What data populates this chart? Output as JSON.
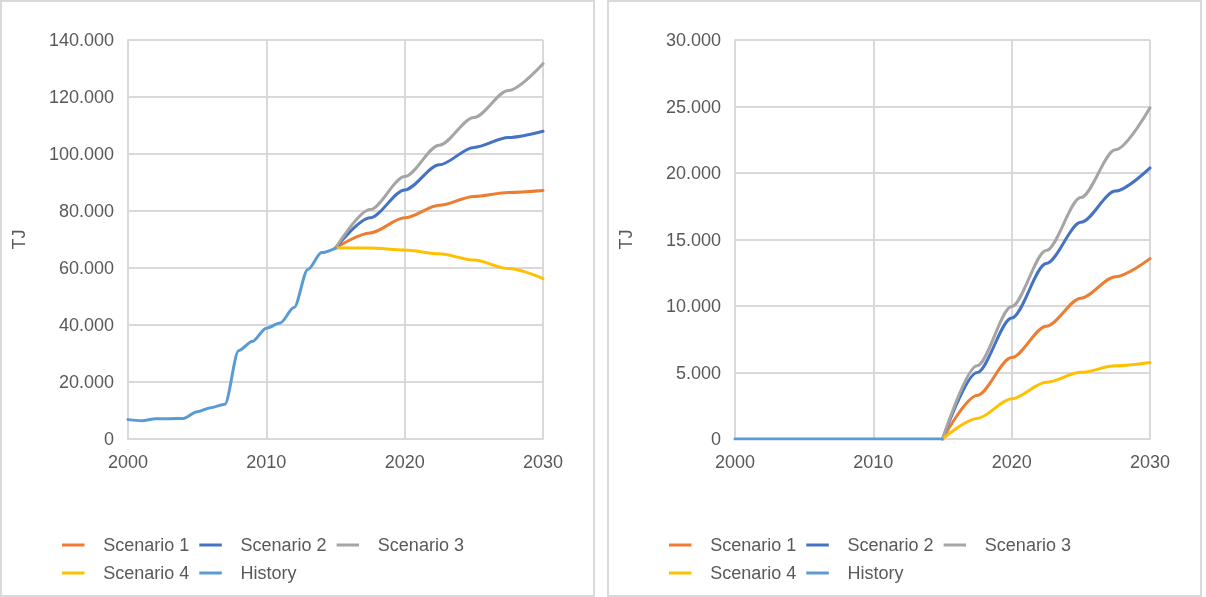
{
  "chart_data": [
    {
      "type": "line",
      "ylabel": "TJ",
      "xlim": [
        2000,
        2030
      ],
      "xticks": [
        2000,
        2010,
        2020,
        2030
      ],
      "ylim": [
        0,
        140000
      ],
      "yticks": [
        {
          "value": 0,
          "label": "0"
        },
        {
          "value": 20000,
          "label": "20.000"
        },
        {
          "value": 40000,
          "label": "40.000"
        },
        {
          "value": 60000,
          "label": "60.000"
        },
        {
          "value": 80000,
          "label": "80.000"
        },
        {
          "value": 100000,
          "label": "100.000"
        },
        {
          "value": 120000,
          "label": "120.000"
        },
        {
          "value": 140000,
          "label": "140.000"
        }
      ],
      "grid": true,
      "legend": "bottom",
      "marker": "none",
      "series": [
        {
          "name": "Scenario 1",
          "color": "#ed7d31",
          "x": [
            2015,
            2017.5,
            2020,
            2022.5,
            2025,
            2027.5,
            2030
          ],
          "values": [
            67000,
            72300,
            77600,
            82000,
            85100,
            86500,
            87200
          ]
        },
        {
          "name": "Scenario 2",
          "color": "#4472c4",
          "x": [
            2015,
            2017.5,
            2020,
            2022.5,
            2025,
            2027.5,
            2030
          ],
          "values": [
            67000,
            77600,
            87400,
            96200,
            102300,
            105800,
            108000
          ]
        },
        {
          "name": "Scenario 3",
          "color": "#a5a5a5",
          "x": [
            2015,
            2017.5,
            2020,
            2022.5,
            2025,
            2027.5,
            2030
          ],
          "values": [
            67000,
            80500,
            92100,
            103100,
            112800,
            122300,
            131700
          ]
        },
        {
          "name": "Scenario 4",
          "color": "#ffc000",
          "x": [
            2015,
            2017.5,
            2020,
            2022.5,
            2025,
            2027.5,
            2030
          ],
          "values": [
            67000,
            67000,
            66300,
            65000,
            62800,
            59800,
            56300
          ]
        },
        {
          "name": "History",
          "color": "#5b9bd5",
          "x": [
            2000,
            2001,
            2002,
            2003,
            2004,
            2005,
            2006,
            2007,
            2008,
            2009,
            2010,
            2011,
            2012,
            2013,
            2014,
            2015
          ],
          "values": [
            6800,
            6400,
            7100,
            7100,
            7200,
            9600,
            11000,
            12200,
            31000,
            34300,
            38900,
            40700,
            46100,
            59500,
            65400,
            67000
          ]
        }
      ]
    },
    {
      "type": "line",
      "ylabel": "TJ",
      "xlim": [
        2000,
        2030
      ],
      "xticks": [
        2000,
        2010,
        2020,
        2030
      ],
      "ylim": [
        0,
        30000
      ],
      "yticks": [
        {
          "value": 0,
          "label": "0"
        },
        {
          "value": 5000,
          "label": "5.000"
        },
        {
          "value": 10000,
          "label": "10.000"
        },
        {
          "value": 15000,
          "label": "15.000"
        },
        {
          "value": 20000,
          "label": "20.000"
        },
        {
          "value": 25000,
          "label": "25.000"
        },
        {
          "value": 30000,
          "label": "30.000"
        }
      ],
      "grid": true,
      "legend": "bottom",
      "marker": "none",
      "series": [
        {
          "name": "Scenario 1",
          "color": "#ed7d31",
          "x": [
            2015,
            2017.5,
            2020,
            2022.5,
            2025,
            2027.5,
            2030
          ],
          "values": [
            0,
            3270,
            6120,
            8480,
            10590,
            12200,
            13560
          ]
        },
        {
          "name": "Scenario 2",
          "color": "#4472c4",
          "x": [
            2015,
            2017.5,
            2020,
            2022.5,
            2025,
            2027.5,
            2030
          ],
          "values": [
            0,
            5000,
            9100,
            13190,
            16290,
            18640,
            20380
          ]
        },
        {
          "name": "Scenario 3",
          "color": "#a5a5a5",
          "x": [
            2015,
            2017.5,
            2020,
            2022.5,
            2025,
            2027.5,
            2030
          ],
          "values": [
            0,
            5500,
            9960,
            14180,
            18150,
            21740,
            24900
          ]
        },
        {
          "name": "Scenario 4",
          "color": "#ffc000",
          "x": [
            2015,
            2017.5,
            2020,
            2022.5,
            2025,
            2027.5,
            2030
          ],
          "values": [
            0,
            1540,
            3020,
            4260,
            5010,
            5500,
            5750
          ]
        },
        {
          "name": "History",
          "color": "#5b9bd5",
          "x": [
            2000,
            2005,
            2010,
            2015
          ],
          "values": [
            0,
            0,
            0,
            0
          ]
        }
      ]
    }
  ]
}
